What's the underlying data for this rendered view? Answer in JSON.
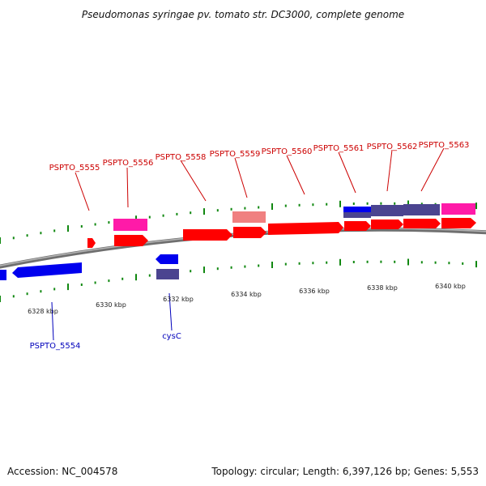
{
  "title": "Pseudomonas syringae pv. tomato str. DC3000, complete genome",
  "footer": {
    "accession": "Accession: NC_004578",
    "summary": "Topology: circular; Length: 6,397,126 bp; Genes: 5,553"
  },
  "colors": {
    "gene_red": "#ff0000",
    "gene_blue": "#0000ee",
    "gene_magenta": "#ff1aa8",
    "gene_salmon": "#f08080",
    "gene_slate": "#4b4490",
    "tick_green": "#118811",
    "backbone": "#888888",
    "label_red": "#cc0000",
    "label_blue": "#0000bb"
  },
  "axis": {
    "unit": "kbp",
    "ticks": [
      {
        "pos": 6328,
        "label": "6328 kbp"
      },
      {
        "pos": 6330,
        "label": "6330 kbp"
      },
      {
        "pos": 6332,
        "label": "6332 kbp"
      },
      {
        "pos": 6334,
        "label": "6334 kbp"
      },
      {
        "pos": 6336,
        "label": "6336 kbp"
      },
      {
        "pos": 6338,
        "label": "6338 kbp"
      },
      {
        "pos": 6340,
        "label": "6340 kbp"
      }
    ]
  },
  "genes": {
    "top_labels": [
      {
        "id": "PSPTO_5555",
        "label": "PSPTO_5555"
      },
      {
        "id": "PSPTO_5556",
        "label": "PSPTO_5556"
      },
      {
        "id": "PSPTO_5558",
        "label": "PSPTO_5558"
      },
      {
        "id": "PSPTO_5559",
        "label": "PSPTO_5559"
      },
      {
        "id": "PSPTO_5560",
        "label": "PSPTO_5560"
      },
      {
        "id": "PSPTO_5561",
        "label": "PSPTO_5561"
      },
      {
        "id": "PSPTO_5562",
        "label": "PSPTO_5562"
      },
      {
        "id": "PSPTO_5563",
        "label": "PSPTO_5563"
      }
    ],
    "bottom_labels": [
      {
        "id": "PSPTO_5554",
        "label": "PSPTO_5554"
      },
      {
        "id": "cysC",
        "label": "cysC"
      }
    ]
  }
}
